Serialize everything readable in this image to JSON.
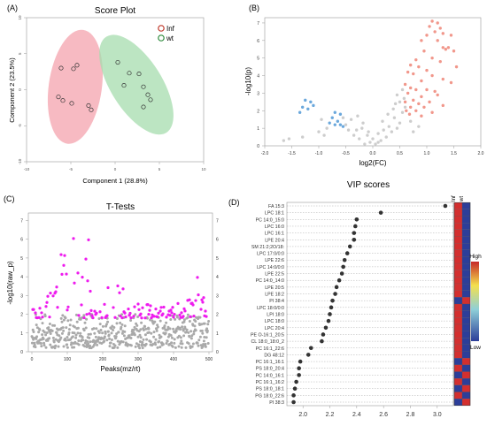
{
  "panels": {
    "a": {
      "label": "(A)"
    },
    "b": {
      "label": "(B)"
    },
    "c": {
      "label": "(C)"
    },
    "d": {
      "label": "(D)"
    }
  },
  "chart_data": [
    {
      "id": "score_plot",
      "type": "scatter",
      "title": "Score Plot",
      "xlabel": "Component 1 (28.8%)",
      "ylabel": "Component 2 (23.5%)",
      "xlim": [
        -10,
        10
      ],
      "ylim": [
        -10,
        10
      ],
      "x_ticks": [
        "-10",
        "-5",
        "0",
        "5",
        "10"
      ],
      "y_ticks": [
        "-10",
        "-5",
        "0",
        "5",
        "10"
      ],
      "legend": [
        "Inf",
        "wt"
      ],
      "legend_position": "top-right",
      "colors": {
        "Inf": "#f4a3ad",
        "wt": "#a6dcae",
        "Inf_edge": "#c0392b",
        "wt_edge": "#2e8b3c"
      },
      "series": [
        {
          "name": "Inf",
          "points": [
            [
              -4.7,
              2.9
            ],
            [
              -4.3,
              3.4
            ],
            [
              -6.1,
              3.0
            ],
            [
              -5.9,
              -1.5
            ],
            [
              -6.4,
              -1.0
            ],
            [
              -3.0,
              -2.2
            ],
            [
              -2.7,
              -2.8
            ],
            [
              -4.9,
              -1.9
            ]
          ]
        },
        {
          "name": "wt",
          "points": [
            [
              0.3,
              3.8
            ],
            [
              1.6,
              2.3
            ],
            [
              1.0,
              0.6
            ],
            [
              2.7,
              2.2
            ],
            [
              3.2,
              0.4
            ],
            [
              3.7,
              -0.7
            ],
            [
              4.0,
              -1.4
            ],
            [
              3.2,
              -2.4
            ]
          ]
        }
      ]
    },
    {
      "id": "volcano",
      "type": "scatter",
      "xlabel": "log2(FC)",
      "ylabel": "-log10(p)",
      "xlim": [
        -2.0,
        2.0
      ],
      "ylim": [
        0,
        7.3
      ],
      "x_ticks": [
        "-2.0",
        "-1.5",
        "-1.0",
        "-0.5",
        "0.0",
        "0.5",
        "1.0",
        "1.5",
        "2.0"
      ],
      "y_ticks": [
        "0",
        "1",
        "2",
        "3",
        "4",
        "5",
        "6",
        "7"
      ],
      "colors": {
        "up": "#f08c7e",
        "down": "#5b9ed8",
        "ns": "#c8c8c8"
      },
      "series": [
        {
          "name": "up",
          "points": [
            [
              1.1,
              7.1
            ],
            [
              1.2,
              7.0
            ],
            [
              1.05,
              6.8
            ],
            [
              1.25,
              6.7
            ],
            [
              1.15,
              6.5
            ],
            [
              1.3,
              6.4
            ],
            [
              1.0,
              6.3
            ],
            [
              1.45,
              6.3
            ],
            [
              0.9,
              6.0
            ],
            [
              1.2,
              6.0
            ],
            [
              1.4,
              5.6
            ],
            [
              1.3,
              5.6
            ],
            [
              1.35,
              5.5
            ],
            [
              1.5,
              5.4
            ],
            [
              0.95,
              5.4
            ],
            [
              1.1,
              5.0
            ],
            [
              0.8,
              4.9
            ],
            [
              1.25,
              4.8
            ],
            [
              0.7,
              4.6
            ],
            [
              0.85,
              4.5
            ],
            [
              1.55,
              4.5
            ],
            [
              0.65,
              4.2
            ],
            [
              0.75,
              4.1
            ],
            [
              1.0,
              4.3
            ],
            [
              1.1,
              4.0
            ],
            [
              1.3,
              3.8
            ],
            [
              0.9,
              3.7
            ],
            [
              1.45,
              3.6
            ],
            [
              0.6,
              3.5
            ],
            [
              0.7,
              3.3
            ],
            [
              0.8,
              3.2
            ],
            [
              1.0,
              3.2
            ],
            [
              1.15,
              3.1
            ],
            [
              0.65,
              3.0
            ],
            [
              0.9,
              2.8
            ],
            [
              1.2,
              2.9
            ],
            [
              0.75,
              2.6
            ],
            [
              1.05,
              2.5
            ],
            [
              0.6,
              2.5
            ],
            [
              0.85,
              2.4
            ],
            [
              1.3,
              2.3
            ],
            [
              0.7,
              2.2
            ],
            [
              0.95,
              2.2
            ],
            [
              0.62,
              2.0
            ],
            [
              0.8,
              2.0
            ],
            [
              1.1,
              1.9
            ],
            [
              0.68,
              1.8
            ],
            [
              0.9,
              1.7
            ]
          ]
        },
        {
          "name": "down",
          "points": [
            [
              -1.25,
              2.6
            ],
            [
              -1.15,
              2.5
            ],
            [
              -1.3,
              2.2
            ],
            [
              -1.2,
              2.1
            ],
            [
              -1.1,
              2.3
            ],
            [
              -1.35,
              1.9
            ],
            [
              -0.7,
              1.9
            ],
            [
              -0.6,
              1.8
            ],
            [
              -0.75,
              1.6
            ],
            [
              -0.65,
              1.4
            ],
            [
              -0.7,
              1.2
            ],
            [
              -0.6,
              1.2
            ],
            [
              -0.8,
              1.3
            ],
            [
              -0.55,
              1.1
            ]
          ]
        },
        {
          "name": "ns",
          "points": [
            [
              -0.15,
              0.1
            ],
            [
              -0.05,
              0.2
            ],
            [
              0.05,
              0.1
            ],
            [
              0.15,
              0.3
            ],
            [
              -0.25,
              0.4
            ],
            [
              0.25,
              0.5
            ],
            [
              -0.35,
              0.6
            ],
            [
              0.35,
              0.8
            ],
            [
              -0.45,
              0.9
            ],
            [
              0.45,
              1.0
            ],
            [
              -0.5,
              1.2
            ],
            [
              0.5,
              1.3
            ],
            [
              -0.4,
              1.5
            ],
            [
              0.4,
              1.6
            ],
            [
              0.55,
              1.9
            ],
            [
              -0.3,
              0.9
            ],
            [
              0.3,
              1.1
            ],
            [
              0.1,
              0.7
            ],
            [
              -0.1,
              0.6
            ],
            [
              0.2,
              0.9
            ],
            [
              -0.2,
              1.0
            ],
            [
              0.6,
              2.2
            ],
            [
              0.5,
              2.5
            ],
            [
              0.45,
              2.9
            ],
            [
              0.55,
              3.2
            ],
            [
              -0.55,
              1.6
            ],
            [
              -0.9,
              0.6
            ],
            [
              -1.0,
              0.8
            ],
            [
              -1.3,
              0.5
            ],
            [
              -1.55,
              0.4
            ],
            [
              -1.65,
              0.3
            ],
            [
              -0.85,
              1.0
            ],
            [
              -0.95,
              1.5
            ],
            [
              0.7,
              1.4
            ],
            [
              0.75,
              0.8
            ],
            [
              0.85,
              1.1
            ],
            [
              0.0,
              0.4
            ],
            [
              0.1,
              0.2
            ],
            [
              -0.08,
              0.8
            ],
            [
              0.18,
              1.4
            ],
            [
              -0.18,
              1.3
            ],
            [
              0.28,
              1.8
            ],
            [
              -0.28,
              1.7
            ],
            [
              0.38,
              2.1
            ],
            [
              0.42,
              2.4
            ],
            [
              0.58,
              2.7
            ]
          ]
        }
      ]
    },
    {
      "id": "ttests",
      "type": "scatter",
      "title": "T-Tests",
      "xlabel": "Peaks(mz/rt)",
      "ylabel": "-log10(raw_p)",
      "xlim": [
        -10,
        510
      ],
      "ylim": [
        0,
        7.4
      ],
      "x_ticks": [
        "0",
        "100",
        "200",
        "300",
        "400",
        "500"
      ],
      "y_ticks": [
        "0",
        "1",
        "2",
        "3",
        "4",
        "5",
        "6",
        "7"
      ],
      "colors": {
        "sig": "#ee1bee",
        "ns": "#a9a9a9"
      }
    },
    {
      "id": "vip",
      "type": "scatter",
      "title": "VIP scores",
      "xlim": [
        1.88,
        3.12
      ],
      "x_ticks": [
        "2.0",
        "2.2",
        "2.4",
        "2.6",
        "2.8",
        "3.0"
      ],
      "categories": [
        "FA 15:3",
        "LPC 18:1",
        "PC 14:0_15:0",
        "LPC 16:0",
        "LPC 16:1",
        "LPE 20:4",
        "SM 21:2;2O/18:",
        "LPC 17:0/0:0",
        "LPE 22:6",
        "LPC 14:0/0:0",
        "LPE 22:5",
        "PC 14:0_14:0",
        "LPE 20:5",
        "LPE 18:2",
        "PI 38:4",
        "LPC 18:0/0:0",
        "LPI 18:0",
        "LPC 18:0",
        "LPC 20:4",
        "PE O-16:1_20:5",
        "CL 18:0_18:0_2",
        "PC 16:1_22:6",
        "DG 48:12",
        "PC 16:1_16:1",
        "PS 18:0_20:4",
        "PC 14:0_16:1",
        "PC 16:1_16:2",
        "PS 18:0_18:1",
        "PG 18:0_22:6",
        "PI 38:3"
      ],
      "values": [
        3.06,
        2.58,
        2.4,
        2.39,
        2.38,
        2.38,
        2.35,
        2.33,
        2.31,
        2.3,
        2.29,
        2.27,
        2.25,
        2.24,
        2.22,
        2.21,
        2.2,
        2.19,
        2.17,
        2.15,
        2.14,
        2.06,
        2.04,
        1.98,
        1.97,
        1.97,
        1.95,
        1.94,
        1.93,
        1.93
      ],
      "heatmap_columns": [
        "Inf",
        "wt"
      ],
      "heatmap": [
        [
          1,
          0
        ],
        [
          1,
          0
        ],
        [
          1,
          0
        ],
        [
          1,
          0
        ],
        [
          1,
          0
        ],
        [
          1,
          0
        ],
        [
          1,
          0
        ],
        [
          1,
          0
        ],
        [
          1,
          0
        ],
        [
          1,
          0
        ],
        [
          1,
          0
        ],
        [
          1,
          0
        ],
        [
          1,
          0
        ],
        [
          1,
          0
        ],
        [
          0,
          1
        ],
        [
          1,
          0
        ],
        [
          1,
          0
        ],
        [
          1,
          0
        ],
        [
          1,
          0
        ],
        [
          1,
          0
        ],
        [
          1,
          0
        ],
        [
          1,
          0
        ],
        [
          1,
          0
        ],
        [
          0,
          1
        ],
        [
          1,
          0
        ],
        [
          0,
          1
        ],
        [
          1,
          0
        ],
        [
          0,
          1
        ],
        [
          1,
          0
        ],
        [
          0,
          1
        ]
      ],
      "colorbar": {
        "high": "High",
        "low": "Low"
      }
    }
  ]
}
